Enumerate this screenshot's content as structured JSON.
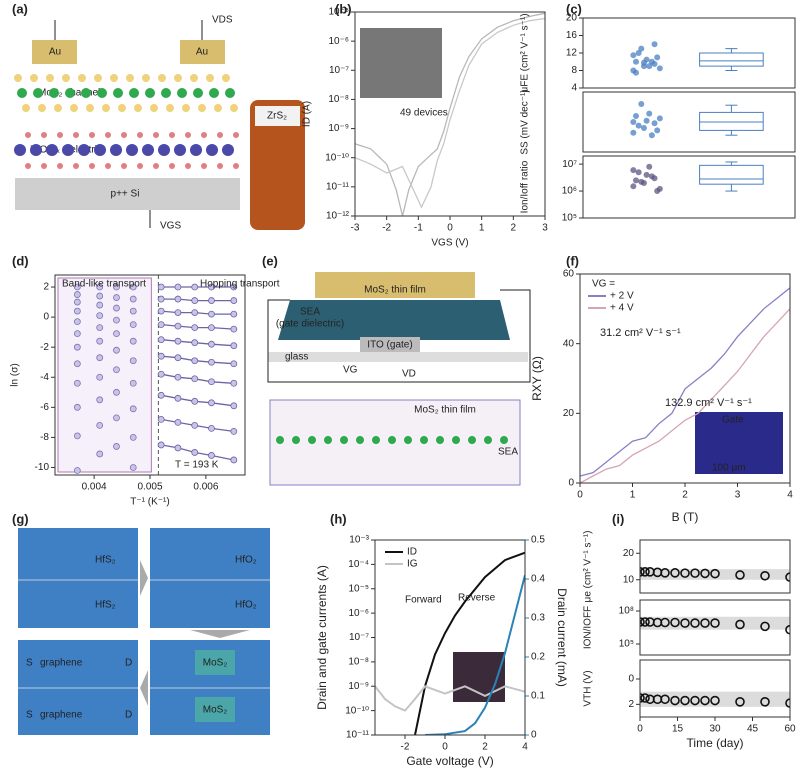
{
  "panel_labels": [
    "(a)",
    "(b)",
    "(c)",
    "(d)",
    "(e)",
    "(f)",
    "(g)",
    "(h)",
    "(i)"
  ],
  "diagrams": {
    "a": [
      "Au",
      "Au",
      "VDS",
      "MoS₂ channel",
      "ZrO₂₋ₓ dielectric",
      "p++ Si",
      "VGS",
      "ZrS₂"
    ],
    "e": [
      "MoS₂ thin film",
      "SEA",
      "(gate dielectric)",
      "ITO (gate)",
      "glass",
      "VG",
      "VD",
      "MoS₂ thin film",
      "SEA"
    ],
    "g": [
      "HfS₂",
      "HfS₂",
      "HfO₂",
      "HfO₂",
      "graphene",
      "graphene",
      "S",
      "D",
      "S",
      "D",
      "MoS₂",
      "MoS₂"
    ]
  },
  "chart_data": [
    {
      "type": "line",
      "xlabel": "VGS (V)",
      "ylabel": "ID (A)",
      "xlim": [
        -3,
        3
      ],
      "xticks": [
        -3,
        -2,
        -1,
        0,
        1,
        2,
        3
      ],
      "ylog": true,
      "ylim": [
        1e-12,
        1e-05
      ],
      "yticks": [
        {
          "value": 1e-12,
          "label": "10⁻¹²"
        },
        {
          "value": 1e-11,
          "label": "10⁻¹¹"
        },
        {
          "value": 1e-10,
          "label": "10⁻¹⁰"
        },
        {
          "value": 1e-09,
          "label": "10⁻⁹"
        },
        {
          "value": 1e-08,
          "label": "10⁻⁸"
        },
        {
          "value": 1e-07,
          "label": "10⁻⁷"
        },
        {
          "value": 1e-06,
          "label": "10⁻⁶"
        },
        {
          "value": 1e-05,
          "label": "10⁻⁵"
        }
      ],
      "annotations": [
        "49 devices"
      ],
      "series": [
        {
          "color": "#b8b8b8",
          "x": [
            -3,
            -2.5,
            -2,
            -1.7,
            -1.5,
            -1.3,
            -1,
            -0.7,
            -0.4,
            -0.2,
            0,
            0.3,
            0.6,
            1,
            1.5,
            2,
            2.5,
            3
          ],
          "values": [
            3e-10,
            2e-10,
            6e-11,
            8e-12,
            1e-12,
            8e-12,
            5e-11,
            1e-10,
            2e-10,
            8e-10,
            5e-09,
            6e-08,
            3e-07,
            1.2e-06,
            3e-06,
            5e-06,
            7e-06,
            9e-06
          ]
        },
        {
          "color": "#c8c8c8",
          "x": [
            -3,
            -2.5,
            -2,
            -1.5,
            -1.2,
            -0.9,
            -0.6,
            -0.4,
            -0.2,
            0,
            0.3,
            0.6,
            1,
            1.5,
            2,
            2.5,
            3
          ],
          "values": [
            1e-10,
            6e-11,
            3e-11,
            5e-11,
            1e-11,
            2e-12,
            1e-11,
            8e-11,
            3e-10,
            2e-09,
            2e-08,
            1.5e-07,
            8e-07,
            2e-06,
            3.5e-06,
            5e-06,
            6e-06
          ]
        }
      ]
    },
    {
      "type": "box",
      "ylabel": "μFE (cm² V⁻¹ s⁻¹)",
      "ylim": [
        4,
        20
      ],
      "yticks": [
        4,
        8,
        12,
        16,
        20
      ],
      "series": [
        {
          "color": "#4a7fc1",
          "values": [
            8,
            9,
            9.5,
            10,
            10.5,
            11,
            12,
            9,
            8.5,
            13,
            10,
            11.5,
            9.8,
            14,
            7.5
          ],
          "box": [
            8,
            9,
            10.2,
            12,
            13
          ]
        }
      ]
    },
    {
      "type": "box",
      "ylabel": "SS (mV dec⁻¹)",
      "ylim": [
        0,
        250
      ],
      "series": [
        {
          "color": "#4a7fc1",
          "values": [
            80,
            100,
            120,
            150,
            130,
            90,
            110,
            160,
            140,
            200,
            70,
            125
          ],
          "box": [
            70,
            90,
            125,
            165,
            195
          ]
        }
      ]
    },
    {
      "type": "box",
      "ylabel": "Ion/Ioff ratio",
      "ylog": true,
      "ylim": [
        100000.0,
        20000000.0
      ],
      "yticks": [
        {
          "value": 100000.0,
          "label": "10⁵"
        },
        {
          "value": 1000000.0,
          "label": "10⁶"
        },
        {
          "value": 10000000.0,
          "label": "10⁷"
        }
      ],
      "series": [
        {
          "color": "#5b5682",
          "values": [
            1500000.0,
            2000000.0,
            3000000.0,
            2500000.0,
            4000000.0,
            1000000.0,
            5000000.0,
            8000000.0,
            1200000.0,
            2200000.0,
            3500000.0,
            6000000.0
          ],
          "box": [
            1000000.0,
            1800000.0,
            2800000.0,
            9000000.0,
            12000000.0
          ]
        }
      ]
    },
    {
      "type": "scatter",
      "xlabel": "T⁻¹ (K⁻¹)",
      "ylabel": "ln (σ)",
      "xlim": [
        0.0033,
        0.0067
      ],
      "xticks": [
        0.004,
        0.005,
        0.006
      ],
      "ylim": [
        -10.5,
        2.8
      ],
      "yticks": [
        2,
        0,
        -2,
        -4,
        -6,
        -8,
        -10
      ],
      "vline": 0.00515,
      "annotations": [
        "Band-like transport",
        "Hopping transport",
        "T = 193 K"
      ],
      "series": [
        {
          "color": "#7d74b4",
          "x": [
            0.0037,
            0.0037,
            0.0037,
            0.0037,
            0.0037,
            0.0037,
            0.0037,
            0.0037,
            0.0037,
            0.0037,
            0.0037,
            0.0037
          ],
          "values": [
            2,
            1.5,
            1,
            0.4,
            -0.3,
            -1.1,
            -2,
            -3.1,
            -4.4,
            -6,
            -7.9,
            -10.2
          ]
        },
        {
          "color": "#7d74b4",
          "x": [
            0.0041,
            0.0041,
            0.0041,
            0.0041,
            0.0041,
            0.0041,
            0.0041,
            0.0041,
            0.0041,
            0.0041,
            0.0041
          ],
          "values": [
            2,
            1.4,
            0.8,
            0.1,
            -0.7,
            -1.6,
            -2.7,
            -4,
            -5.5,
            -7.2,
            -9.1
          ]
        },
        {
          "color": "#7d74b4",
          "x": [
            0.0044,
            0.0044,
            0.0044,
            0.0044,
            0.0044,
            0.0044,
            0.0044,
            0.0044,
            0.0044,
            0.0044
          ],
          "values": [
            2,
            1.3,
            0.6,
            -0.2,
            -1.1,
            -2.2,
            -3.5,
            -5,
            -6.7,
            -8.6
          ]
        },
        {
          "color": "#7d74b4",
          "x": [
            0.0047,
            0.0047,
            0.0047,
            0.0047,
            0.0047,
            0.0047,
            0.0047,
            0.0047,
            0.0047,
            0.0047
          ],
          "values": [
            2,
            1.2,
            0.4,
            -0.5,
            -1.6,
            -2.9,
            -4.4,
            -6.1,
            -8,
            -10
          ]
        },
        {
          "color": "#6a66a8",
          "connect": true,
          "x": [
            0.0052,
            0.0055,
            0.0058,
            0.0061,
            0.0065
          ],
          "values": [
            2,
            2,
            2,
            2,
            2
          ]
        },
        {
          "color": "#6a66a8",
          "connect": true,
          "x": [
            0.0052,
            0.0055,
            0.0058,
            0.0061,
            0.0065
          ],
          "values": [
            1.2,
            1.2,
            1.1,
            1.1,
            1.1
          ]
        },
        {
          "color": "#6a66a8",
          "connect": true,
          "x": [
            0.0052,
            0.0055,
            0.0058,
            0.0061,
            0.0065
          ],
          "values": [
            0.4,
            0.3,
            0.3,
            0.2,
            0.2
          ]
        },
        {
          "color": "#6a66a8",
          "connect": true,
          "x": [
            0.0052,
            0.0055,
            0.0058,
            0.0061,
            0.0065
          ],
          "values": [
            -0.5,
            -0.6,
            -0.7,
            -0.7,
            -0.8
          ]
        },
        {
          "color": "#6a66a8",
          "connect": true,
          "x": [
            0.0052,
            0.0055,
            0.0058,
            0.0061,
            0.0065
          ],
          "values": [
            -1.5,
            -1.6,
            -1.7,
            -1.8,
            -1.9
          ]
        },
        {
          "color": "#6a66a8",
          "connect": true,
          "x": [
            0.0052,
            0.0055,
            0.0058,
            0.0061,
            0.0065
          ],
          "values": [
            -2.6,
            -2.7,
            -2.9,
            -3,
            -3.1
          ]
        },
        {
          "color": "#6a66a8",
          "connect": true,
          "x": [
            0.0052,
            0.0055,
            0.0058,
            0.0061,
            0.0065
          ],
          "values": [
            -3.8,
            -4,
            -4.1,
            -4.3,
            -4.4
          ]
        },
        {
          "color": "#6a66a8",
          "connect": true,
          "x": [
            0.0052,
            0.0055,
            0.0058,
            0.0061,
            0.0065
          ],
          "values": [
            -5.2,
            -5.4,
            -5.6,
            -5.7,
            -5.9
          ]
        },
        {
          "color": "#6a66a8",
          "connect": true,
          "x": [
            0.0052,
            0.0055,
            0.0058,
            0.0061,
            0.0065
          ],
          "values": [
            -6.8,
            -7,
            -7.2,
            -7.4,
            -7.6
          ]
        },
        {
          "color": "#6a66a8",
          "connect": true,
          "x": [
            0.0052,
            0.0055,
            0.0058,
            0.0061,
            0.0065
          ],
          "values": [
            -8.5,
            -8.7,
            -9,
            -9.2,
            -9.5
          ]
        }
      ]
    },
    {
      "type": "line",
      "xlabel": "B (T)",
      "ylabel": "RXY (Ω)",
      "xlim": [
        0,
        4
      ],
      "xticks": [
        0,
        1,
        2,
        3,
        4
      ],
      "ylim": [
        0,
        60
      ],
      "yticks": [
        0,
        20,
        40,
        60
      ],
      "legend_title": "VG =",
      "annotations": [
        "31.2 cm² V⁻¹ s⁻¹",
        "132.9 cm² V⁻¹ s⁻¹",
        "Gate",
        "100 μm"
      ],
      "series": [
        {
          "name": "+ 2 V",
          "color": "#8a7fc4",
          "x": [
            0,
            0.25,
            0.5,
            0.75,
            1,
            1.25,
            1.5,
            1.75,
            2,
            2.25,
            2.5,
            2.75,
            3,
            3.25,
            3.5,
            3.75,
            4
          ],
          "values": [
            2,
            3,
            6,
            9,
            12,
            13,
            17,
            20,
            27,
            30,
            33,
            37,
            42,
            46,
            50,
            53,
            56
          ]
        },
        {
          "name": "+ 4 V",
          "color": "#d4a5b5",
          "x": [
            0,
            0.25,
            0.5,
            0.75,
            1,
            1.25,
            1.5,
            1.75,
            2,
            2.25,
            2.5,
            2.75,
            3,
            3.25,
            3.5,
            3.75,
            4
          ],
          "values": [
            0,
            2,
            4,
            5,
            8,
            10,
            12,
            15,
            18,
            20,
            24,
            28,
            32,
            37,
            42,
            46,
            50
          ]
        }
      ]
    },
    {
      "type": "line",
      "xlabel": "Gate voltage (V)",
      "ylabel": "Drain and gate currents (A)",
      "y2label": "Drain current (mA)",
      "xlim": [
        -3.5,
        4
      ],
      "xticks": [
        -2,
        0,
        2,
        4
      ],
      "ylog": true,
      "ylim": [
        1e-11,
        0.001
      ],
      "yticks": [
        {
          "value": 1e-11,
          "label": "10⁻¹¹"
        },
        {
          "value": 1e-10,
          "label": "10⁻¹⁰"
        },
        {
          "value": 1e-09,
          "label": "10⁻⁹"
        },
        {
          "value": 1e-08,
          "label": "10⁻⁸"
        },
        {
          "value": 1e-07,
          "label": "10⁻⁷"
        },
        {
          "value": 1e-06,
          "label": "10⁻⁶"
        },
        {
          "value": 1e-05,
          "label": "10⁻⁵"
        },
        {
          "value": 0.0001,
          "label": "10⁻⁴"
        },
        {
          "value": 0.001,
          "label": "10⁻³"
        }
      ],
      "y2lim": [
        0,
        0.5
      ],
      "y2ticks": [
        0,
        0.1,
        0.2,
        0.3,
        0.4,
        0.5
      ],
      "annotations": [
        "Forward",
        "Reverse"
      ],
      "series": [
        {
          "name": "ID",
          "color": "#111111",
          "x": [
            -1.8,
            -1.5,
            -1,
            -0.5,
            0,
            0.5,
            1,
            2,
            3,
            4
          ],
          "values": [
            5e-12,
            1e-11,
            1e-09,
            2e-08,
            1.5e-07,
            8e-07,
            3e-06,
            3e-05,
            0.00015,
            0.0003
          ]
        },
        {
          "name": "IG",
          "color": "#c4c4c4",
          "x": [
            -3.5,
            -3,
            -2.5,
            -2,
            -1.5,
            -1,
            0,
            1,
            2,
            3,
            4
          ],
          "values": [
            1e-09,
            3e-10,
            1.5e-10,
            1e-10,
            3e-10,
            1e-09,
            5e-10,
            1e-09,
            4e-10,
            1e-09,
            6e-10
          ]
        },
        {
          "color": "#2a83b7",
          "axis": "y2",
          "x": [
            -1,
            0,
            1,
            1.5,
            2,
            2.5,
            3,
            3.5,
            4
          ],
          "values": [
            0,
            0.002,
            0.01,
            0.03,
            0.07,
            0.13,
            0.21,
            0.31,
            0.41
          ]
        }
      ]
    },
    {
      "type": "scatter",
      "ylabel": "μe (cm² V⁻¹ s⁻¹)",
      "xlim": [
        0,
        60
      ],
      "ylim": [
        5,
        25
      ],
      "yticks": [
        10,
        20
      ],
      "band": [
        10,
        14
      ],
      "series": [
        {
          "color": "#111111",
          "open": true,
          "x": [
            0,
            2,
            4,
            7,
            10,
            14,
            18,
            22,
            26,
            30,
            40,
            50,
            60
          ],
          "values": [
            13,
            13,
            13,
            12.8,
            12.6,
            12.6,
            12.5,
            12.5,
            12.4,
            12.3,
            11.8,
            11.5,
            11
          ]
        }
      ]
    },
    {
      "type": "scatter",
      "ylabel": "ION/IOFF",
      "xlim": [
        0,
        60
      ],
      "ylog": true,
      "ylim": [
        10000.0,
        1000000000.0
      ],
      "yticks": [
        {
          "value": 100000.0,
          "label": "10⁵"
        },
        {
          "value": 100000000.0,
          "label": "10⁸"
        }
      ],
      "band": [
        2000000.0,
        30000000.0
      ],
      "series": [
        {
          "color": "#111111",
          "open": true,
          "x": [
            0,
            2,
            4,
            7,
            10,
            14,
            18,
            22,
            26,
            30,
            40,
            50,
            60
          ],
          "values": [
            10000000.0,
            10000000.0,
            10000000.0,
            9000000.0,
            9000000.0,
            9000000.0,
            8000000.0,
            8000000.0,
            8000000.0,
            8000000.0,
            6000000.0,
            4000000.0,
            2000000.0
          ]
        }
      ]
    },
    {
      "type": "scatter",
      "ylabel": "VTH (V)",
      "xlabel": "Time (day)",
      "xlim": [
        0,
        60
      ],
      "xticks": [
        0,
        15,
        30,
        45,
        60
      ],
      "ylim": [
        3,
        -1.5
      ],
      "yticks": [
        0,
        2
      ],
      "band": [
        1,
        2.2
      ],
      "series": [
        {
          "color": "#111111",
          "open": true,
          "x": [
            0,
            2,
            4,
            7,
            10,
            14,
            18,
            22,
            26,
            30,
            40,
            50,
            60
          ],
          "values": [
            1.5,
            1.5,
            1.6,
            1.6,
            1.6,
            1.7,
            1.7,
            1.7,
            1.7,
            1.7,
            1.8,
            1.8,
            1.9
          ]
        }
      ]
    }
  ]
}
